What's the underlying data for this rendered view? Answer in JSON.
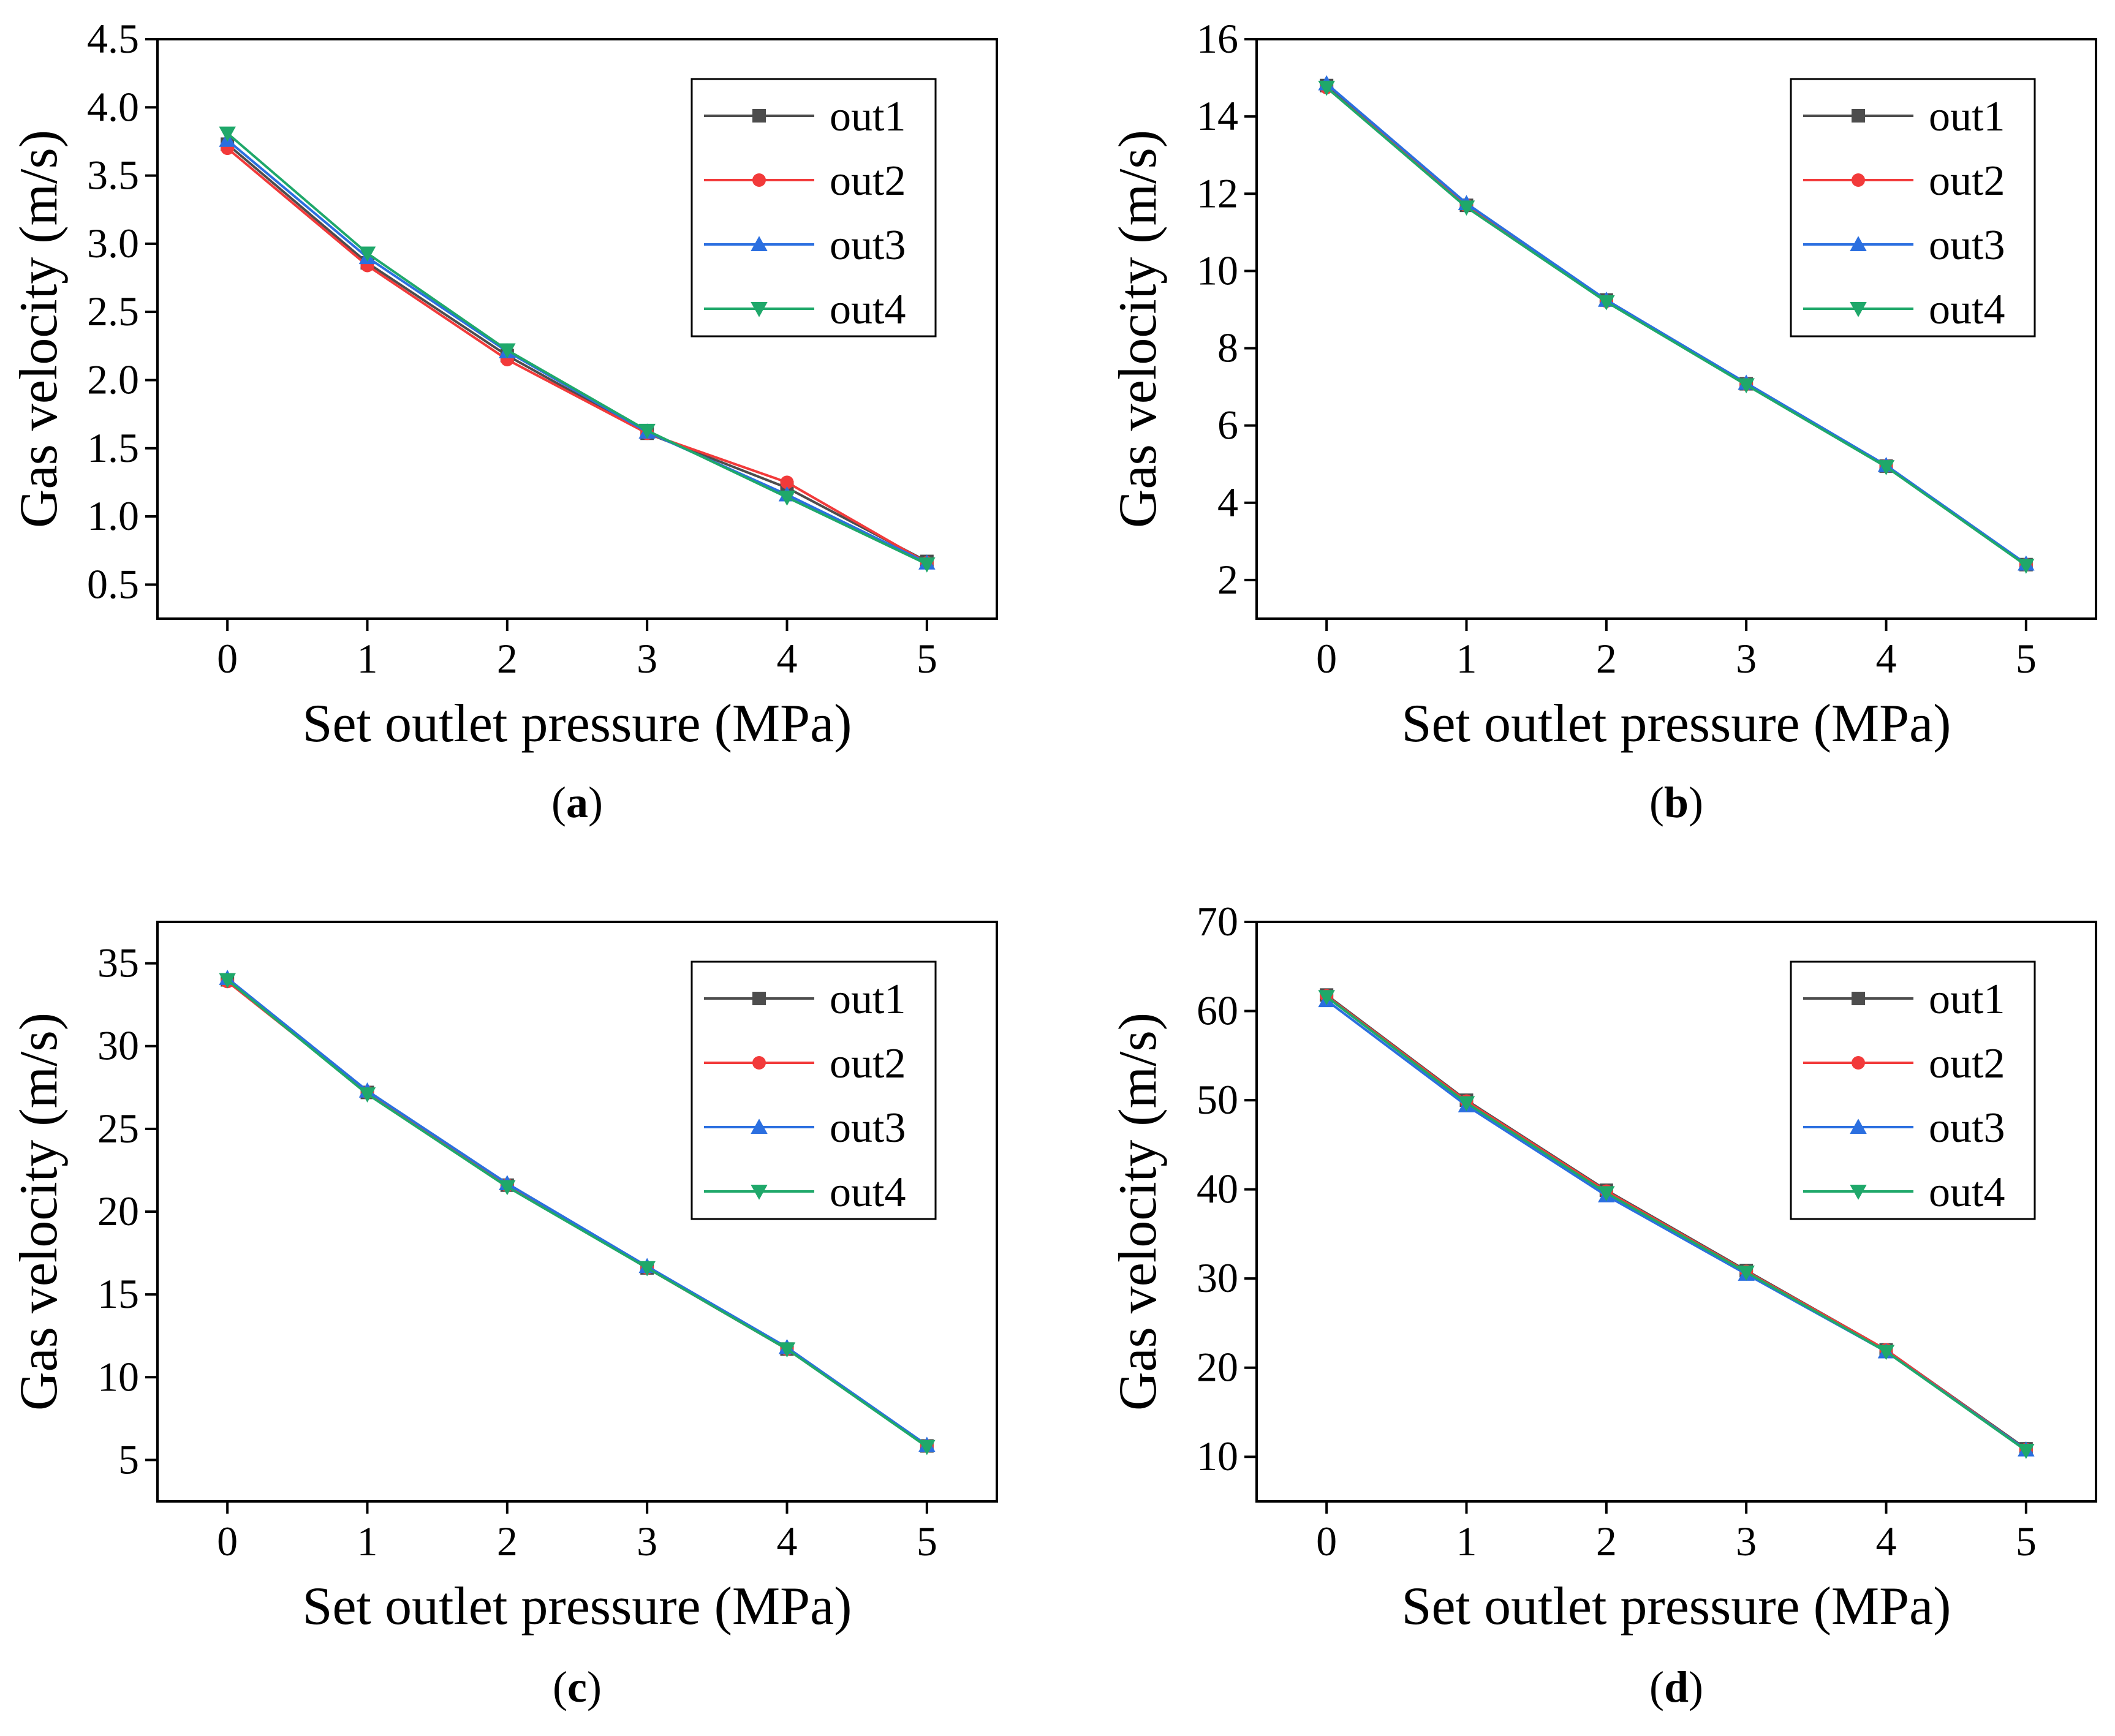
{
  "chart_data": [
    {
      "type": "line",
      "panel_label": "(a)",
      "panel_letter": "a",
      "xlabel": "Set outlet pressure (MPa)",
      "ylabel": "Gas velocity (m/s)",
      "x": [
        0,
        1,
        2,
        3,
        4,
        5
      ],
      "xticks": [
        "0",
        "1",
        "2",
        "3",
        "4",
        "5"
      ],
      "xlim": [
        -0.5,
        5.5
      ],
      "ylim": [
        0.25,
        4.5
      ],
      "yticks": [
        "0.5",
        "1.0",
        "1.5",
        "2.0",
        "2.5",
        "3.0",
        "3.5",
        "4.0",
        "4.5"
      ],
      "yticks_values": [
        0.5,
        1.0,
        1.5,
        2.0,
        2.5,
        3.0,
        3.5,
        4.0,
        4.5
      ],
      "legend_position": "top-right",
      "series": [
        {
          "name": "out1",
          "values": [
            3.73,
            2.86,
            2.18,
            1.61,
            1.21,
            0.67
          ]
        },
        {
          "name": "out2",
          "values": [
            3.7,
            2.84,
            2.15,
            1.61,
            1.25,
            0.66
          ]
        },
        {
          "name": "out3",
          "values": [
            3.76,
            2.9,
            2.21,
            1.62,
            1.16,
            0.66
          ]
        },
        {
          "name": "out4",
          "values": [
            3.81,
            2.93,
            2.22,
            1.63,
            1.14,
            0.65
          ]
        }
      ]
    },
    {
      "type": "line",
      "panel_label": "(b)",
      "panel_letter": "b",
      "xlabel": "Set outlet pressure (MPa)",
      "ylabel": "Gas velocity (m/s)",
      "x": [
        0,
        1,
        2,
        3,
        4,
        5
      ],
      "xticks": [
        "0",
        "1",
        "2",
        "3",
        "4",
        "5"
      ],
      "xlim": [
        -0.5,
        5.5
      ],
      "ylim": [
        1,
        16
      ],
      "yticks": [
        "2",
        "4",
        "6",
        "8",
        "10",
        "12",
        "14",
        "16"
      ],
      "yticks_values": [
        2,
        4,
        6,
        8,
        10,
        12,
        14,
        16
      ],
      "legend_position": "top-right",
      "series": [
        {
          "name": "out1",
          "values": [
            14.8,
            11.7,
            9.25,
            7.08,
            4.95,
            2.4
          ]
        },
        {
          "name": "out2",
          "values": [
            14.75,
            11.7,
            9.22,
            7.07,
            4.95,
            2.4
          ]
        },
        {
          "name": "out3",
          "values": [
            14.85,
            11.75,
            9.25,
            7.1,
            4.97,
            2.42
          ]
        },
        {
          "name": "out4",
          "values": [
            14.75,
            11.65,
            9.2,
            7.05,
            4.93,
            2.38
          ]
        }
      ]
    },
    {
      "type": "line",
      "panel_label": "(c)",
      "panel_letter": "c",
      "xlabel": "Set outlet pressure (MPa)",
      "ylabel": "Gas velocity (m/s)",
      "x": [
        0,
        1,
        2,
        3,
        4,
        5
      ],
      "xticks": [
        "0",
        "1",
        "2",
        "3",
        "4",
        "5"
      ],
      "xlim": [
        -0.5,
        5.5
      ],
      "ylim": [
        2.5,
        37.5
      ],
      "yticks": [
        "5",
        "10",
        "15",
        "20",
        "25",
        "30",
        "35"
      ],
      "yticks_values": [
        5,
        10,
        15,
        20,
        25,
        30,
        35
      ],
      "legend_position": "top-right",
      "series": [
        {
          "name": "out1",
          "values": [
            34.0,
            27.2,
            21.6,
            16.6,
            11.7,
            5.85
          ]
        },
        {
          "name": "out2",
          "values": [
            33.9,
            27.2,
            21.6,
            16.6,
            11.7,
            5.85
          ]
        },
        {
          "name": "out3",
          "values": [
            34.1,
            27.3,
            21.7,
            16.7,
            11.8,
            5.9
          ]
        },
        {
          "name": "out4",
          "values": [
            34.0,
            27.1,
            21.5,
            16.6,
            11.7,
            5.8
          ]
        }
      ]
    },
    {
      "type": "line",
      "panel_label": "(d)",
      "panel_letter": "d",
      "xlabel": "Set outlet pressure (MPa)",
      "ylabel": "Gas velocity (m/s)",
      "x": [
        0,
        1,
        2,
        3,
        4,
        5
      ],
      "xticks": [
        "0",
        "1",
        "2",
        "3",
        "4",
        "5"
      ],
      "xlim": [
        -0.5,
        5.5
      ],
      "ylim": [
        5,
        70
      ],
      "yticks": [
        "10",
        "20",
        "30",
        "40",
        "50",
        "60",
        "70"
      ],
      "yticks_values": [
        10,
        20,
        30,
        40,
        50,
        60,
        70
      ],
      "legend_position": "top-right",
      "series": [
        {
          "name": "out1",
          "values": [
            61.8,
            50.0,
            39.9,
            30.9,
            22.0,
            10.9
          ]
        },
        {
          "name": "out2",
          "values": [
            61.7,
            49.9,
            39.8,
            30.8,
            22.0,
            10.8
          ]
        },
        {
          "name": "out3",
          "values": [
            61.2,
            49.4,
            39.3,
            30.5,
            21.8,
            10.8
          ]
        },
        {
          "name": "out4",
          "values": [
            61.6,
            49.7,
            39.6,
            30.7,
            21.8,
            10.7
          ]
        }
      ]
    }
  ],
  "series_style": {
    "out1": {
      "color": "#4d4d4d",
      "marker": "square"
    },
    "out2": {
      "color": "#f23a3a",
      "marker": "circle"
    },
    "out3": {
      "color": "#2b6fe0",
      "marker": "triangle-up"
    },
    "out4": {
      "color": "#1fa86a",
      "marker": "triangle-down"
    }
  }
}
